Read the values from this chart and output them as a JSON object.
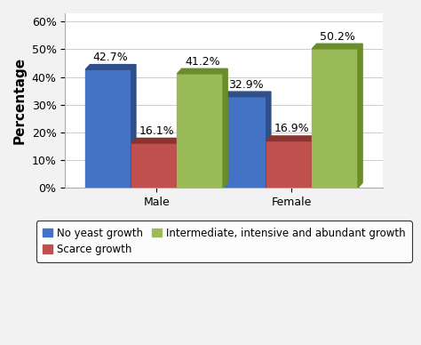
{
  "categories": [
    "Male",
    "Female"
  ],
  "series": [
    {
      "label": "No yeast growth",
      "values": [
        42.7,
        32.9
      ],
      "color": "#4472C4",
      "dark_color": "#2E4F8A"
    },
    {
      "label": "Scarce growth",
      "values": [
        16.1,
        16.9
      ],
      "color": "#C0504D",
      "dark_color": "#8B3330"
    },
    {
      "label": "Intermediate, intensive and abundant growth",
      "values": [
        41.2,
        50.2
      ],
      "color": "#9BBB59",
      "dark_color": "#6B8C2A"
    }
  ],
  "ylabel": "Percentage",
  "ylim": [
    0,
    0.63
  ],
  "yticks": [
    0.0,
    0.1,
    0.2,
    0.3,
    0.4,
    0.5,
    0.6
  ],
  "ytick_labels": [
    "0%",
    "10%",
    "20%",
    "30%",
    "40%",
    "50%",
    "60%"
  ],
  "bar_width": 0.18,
  "background_color": "#f2f2f2",
  "plot_bg_color": "#ffffff",
  "grid_color": "#cccccc",
  "ylabel_fontsize": 11,
  "tick_fontsize": 9,
  "legend_fontsize": 8.5,
  "annotation_fontsize": 9,
  "depth": 0.018
}
